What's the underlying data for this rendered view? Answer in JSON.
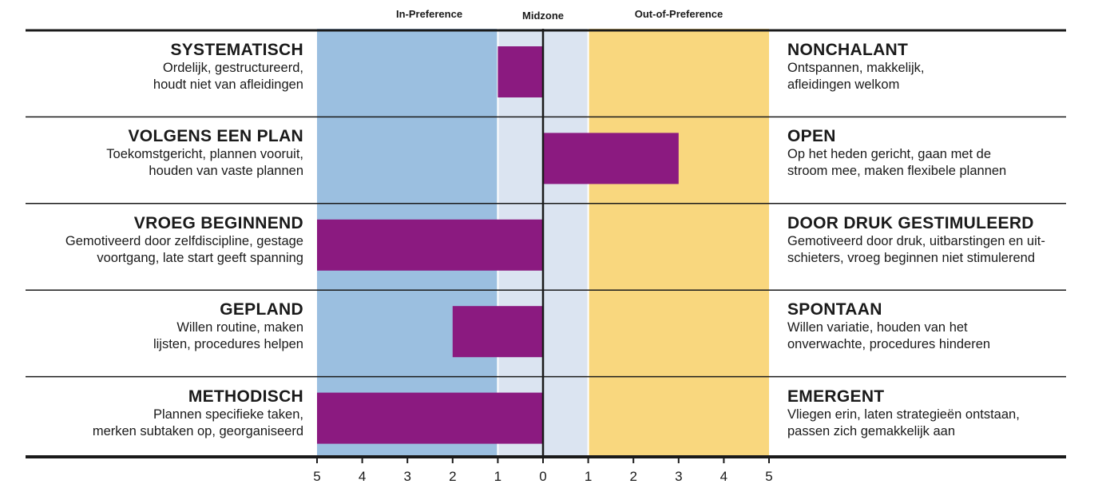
{
  "chart_data": {
    "type": "bar",
    "orientation": "horizontal",
    "zones": {
      "in_preference": "In-Preference",
      "midzone": "Midzone",
      "out_of_preference": "Out-of-Preference"
    },
    "zone_colors": {
      "in_preference": "#9bbfe0",
      "midzone": "#dbe4f1",
      "out_of_preference": "#f9d77e"
    },
    "bar_color": "#8b1a80",
    "xlim": [
      -5,
      5
    ],
    "x_ticks": [
      "5",
      "4",
      "3",
      "2",
      "1",
      "0",
      "1",
      "2",
      "3",
      "4",
      "5"
    ],
    "rows": [
      {
        "left_title": "SYSTEMATISCH",
        "left_desc": [
          "Ordelijk, gestructureerd,",
          "houdt niet van afleidingen"
        ],
        "right_title": "NONCHALANT",
        "right_desc": [
          "Ontspannen, makkelijk,",
          "afleidingen welkom"
        ],
        "value": -1
      },
      {
        "left_title": "VOLGENS EEN PLAN",
        "left_desc": [
          "Toekomstgericht, plannen vooruit,",
          "houden van vaste plannen"
        ],
        "right_title": "OPEN",
        "right_desc": [
          "Op het heden gericht, gaan met de",
          "stroom mee, maken flexibele plannen"
        ],
        "value": 3
      },
      {
        "left_title": "VROEG BEGINNEND",
        "left_desc": [
          "Gemotiveerd door zelfdiscipline, gestage",
          "voortgang, late start geeft spanning"
        ],
        "right_title": "DOOR DRUK GESTIMULEERD",
        "right_desc": [
          "Gemotiveerd door druk, uitbarstingen en uit-",
          "schieters, vroeg beginnen niet stimulerend"
        ],
        "value": -5
      },
      {
        "left_title": "GEPLAND",
        "left_desc": [
          "Willen routine, maken",
          "lijsten, procedures helpen"
        ],
        "right_title": "SPONTAAN",
        "right_desc": [
          "Willen variatie, houden van het",
          "onverwachte, procedures hinderen"
        ],
        "value": -2
      },
      {
        "left_title": "METHODISCH",
        "left_desc": [
          "Plannen specifieke taken,",
          "merken subtaken op, georganiseerd"
        ],
        "right_title": "EMERGENT",
        "right_desc": [
          "Vliegen erin, laten strategieën ontstaan,",
          "passen zich gemakkelijk aan"
        ],
        "value": -5
      }
    ]
  }
}
